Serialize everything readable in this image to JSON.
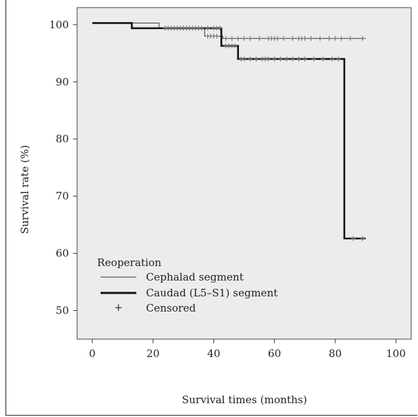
{
  "chart_data": {
    "type": "line",
    "title": "",
    "xlabel": "Survival times (months)",
    "ylabel": "Survival rate (%)",
    "xlim": [
      -5,
      105
    ],
    "ylim": [
      45,
      103
    ],
    "xticks": [
      0,
      20,
      40,
      60,
      80,
      100
    ],
    "yticks": [
      50,
      60,
      70,
      80,
      90,
      100
    ],
    "grid": false,
    "background": "#ececec",
    "legend": {
      "title": "Reoperation",
      "placement": "bottom-left",
      "entries": [
        {
          "label": "Cephalad segment",
          "style": "thin-line"
        },
        {
          "label": "Caudad (L5–S1) segment",
          "style": "thick-line"
        },
        {
          "label": "Censored",
          "style": "plus"
        }
      ]
    },
    "series": [
      {
        "name": "Cephalad segment",
        "step_points": [
          [
            0,
            100.3
          ],
          [
            22,
            100.3
          ],
          [
            22,
            99.4
          ],
          [
            37,
            99.4
          ],
          [
            37,
            98.0
          ],
          [
            43,
            98.0
          ],
          [
            43,
            97.6
          ],
          [
            90,
            97.6
          ]
        ],
        "censored_x": [
          24,
          25,
          26,
          27,
          28,
          29,
          30,
          31,
          32,
          33,
          34,
          35,
          36,
          38,
          39,
          40,
          41,
          44,
          46,
          48,
          50,
          52,
          55,
          58,
          59,
          60,
          61,
          63,
          66,
          68,
          69,
          70,
          72,
          75,
          78,
          80,
          82,
          85,
          89
        ],
        "censored_y": [
          99.4,
          99.4,
          99.4,
          99.4,
          99.4,
          99.4,
          99.4,
          99.4,
          99.4,
          99.4,
          99.4,
          99.4,
          99.4,
          98.0,
          98.0,
          98.0,
          98.0,
          97.6,
          97.6,
          97.6,
          97.6,
          97.6,
          97.6,
          97.6,
          97.6,
          97.6,
          97.6,
          97.6,
          97.6,
          97.6,
          97.6,
          97.6,
          97.6,
          97.6,
          97.6,
          97.6,
          97.6,
          97.6,
          97.6
        ]
      },
      {
        "name": "Caudad (L5–S1) segment",
        "step_points": [
          [
            0,
            100.3
          ],
          [
            13,
            100.3
          ],
          [
            13,
            99.4
          ],
          [
            42.5,
            99.4
          ],
          [
            42.5,
            96.3
          ],
          [
            48,
            96.3
          ],
          [
            48,
            94.0
          ],
          [
            83,
            94.0
          ],
          [
            83,
            62.6
          ],
          [
            90,
            62.6
          ]
        ],
        "censored_x": [
          30,
          35,
          38,
          40,
          41,
          42,
          44,
          45,
          46,
          47,
          49,
          50,
          52,
          54,
          56,
          57,
          58,
          60,
          62,
          64,
          66,
          68,
          70,
          73,
          76,
          79,
          81,
          86,
          89
        ],
        "censored_y": [
          99.4,
          99.4,
          99.4,
          99.4,
          99.4,
          99.4,
          96.3,
          96.3,
          96.3,
          96.3,
          94.0,
          94.0,
          94.0,
          94.0,
          94.0,
          94.0,
          94.0,
          94.0,
          94.0,
          94.0,
          94.0,
          94.0,
          94.0,
          94.0,
          94.0,
          94.0,
          94.0,
          62.6,
          62.6
        ]
      }
    ]
  }
}
